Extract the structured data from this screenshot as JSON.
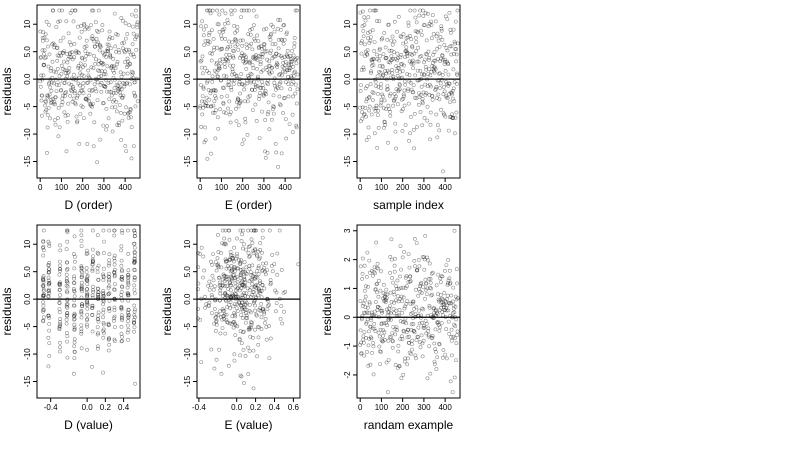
{
  "chart_data": [
    {
      "type": "scatter",
      "xlabel": "D (order)",
      "ylabel": "residuals",
      "x_ticks": [
        0,
        100,
        200,
        300,
        400
      ],
      "y_ticks": [
        -15,
        -10,
        -5,
        0,
        5,
        10
      ],
      "y_tick_labels": [
        "-15",
        "-10",
        "-5",
        "0.0",
        "5.0",
        "10"
      ],
      "xlim": [
        -15,
        470
      ],
      "ylim": [
        -18,
        13.5
      ],
      "reference_line_y": 0,
      "x_sampling": "index",
      "n_points": 460,
      "spread": {
        "center": 1.2,
        "sd": 5.8,
        "min": -17,
        "max": 12.5
      },
      "seed": 11
    },
    {
      "type": "scatter",
      "xlabel": "E (order)",
      "ylabel": "residuals",
      "x_ticks": [
        0,
        100,
        200,
        300,
        400
      ],
      "y_ticks": [
        -15,
        -10,
        -5,
        0,
        5,
        10
      ],
      "y_tick_labels": [
        "-15",
        "-10",
        "-5",
        "0.0",
        "5.0",
        "10"
      ],
      "xlim": [
        -15,
        470
      ],
      "ylim": [
        -18,
        13.5
      ],
      "reference_line_y": 0,
      "x_sampling": "index",
      "n_points": 460,
      "spread": {
        "center": 1.2,
        "sd": 5.8,
        "min": -17,
        "max": 12.5
      },
      "seed": 23
    },
    {
      "type": "scatter",
      "xlabel": "sample index",
      "ylabel": "residuals",
      "x_ticks": [
        0,
        100,
        200,
        300,
        400
      ],
      "y_ticks": [
        -15,
        -10,
        -5,
        0,
        5,
        10
      ],
      "y_tick_labels": [
        "-15",
        "-10",
        "-5",
        "0.0",
        "5.0",
        "10"
      ],
      "xlim": [
        -15,
        470
      ],
      "ylim": [
        -18,
        13.5
      ],
      "reference_line_y": 0,
      "x_sampling": "index",
      "n_points": 460,
      "spread": {
        "center": 1.2,
        "sd": 5.8,
        "min": -17,
        "max": 12.5
      },
      "seed": 37
    },
    {
      "type": "scatter",
      "xlabel": "D (value)",
      "ylabel": "residuals",
      "x_ticks": [
        -0.4,
        0.0,
        0.2,
        0.4
      ],
      "x_tick_labels": [
        "-0.4",
        "0.0",
        "0.2",
        "0.4"
      ],
      "y_ticks": [
        -15,
        -10,
        -5,
        0,
        5,
        10
      ],
      "y_tick_labels": [
        "-15",
        "-10",
        "-5",
        "0.0",
        "5.0",
        "10"
      ],
      "xlim": [
        -0.55,
        0.58
      ],
      "ylim": [
        -18,
        13.5
      ],
      "reference_line_y": 0,
      "x_sampling": "discrete",
      "x_levels": [
        -0.48,
        -0.42,
        -0.3,
        -0.22,
        -0.14,
        -0.06,
        0.0,
        0.06,
        0.12,
        0.18,
        0.24,
        0.3,
        0.38,
        0.45,
        0.52
      ],
      "n_points": 460,
      "spread": {
        "center": 1.2,
        "sd": 5.8,
        "min": -17,
        "max": 12.5
      },
      "seed": 41
    },
    {
      "type": "scatter",
      "xlabel": "E (value)",
      "ylabel": "residuals",
      "x_ticks": [
        -0.4,
        0.0,
        0.2,
        0.4,
        0.6
      ],
      "x_tick_labels": [
        "-0.4",
        "0.0",
        "0.2",
        "0.4",
        "0.6"
      ],
      "y_ticks": [
        -15,
        -10,
        -5,
        0,
        5,
        10
      ],
      "y_tick_labels": [
        "-15",
        "-10",
        "-5",
        "0.0",
        "5.0",
        "10"
      ],
      "xlim": [
        -0.42,
        0.67
      ],
      "ylim": [
        -18,
        13.5
      ],
      "reference_line_y": 0,
      "x_sampling": "continuous",
      "x_center": 0.05,
      "x_sd": 0.22,
      "n_points": 460,
      "spread": {
        "center": 1.2,
        "sd": 5.8,
        "min": -17,
        "max": 12.5
      },
      "seed": 53
    },
    {
      "type": "scatter",
      "xlabel": "randam example",
      "ylabel": "residuals",
      "x_ticks": [
        0,
        100,
        200,
        300,
        400
      ],
      "y_ticks": [
        -2,
        -1,
        0,
        1,
        2,
        3
      ],
      "y_tick_labels": [
        "-2",
        "-1",
        "0",
        "1",
        "2",
        "3"
      ],
      "xlim": [
        -15,
        470
      ],
      "ylim": [
        -2.8,
        3.2
      ],
      "reference_line_y": 0,
      "x_sampling": "index",
      "n_points": 460,
      "spread": {
        "center": 0.05,
        "sd": 1.0,
        "min": -2.6,
        "max": 3.0
      },
      "seed": 67
    }
  ]
}
